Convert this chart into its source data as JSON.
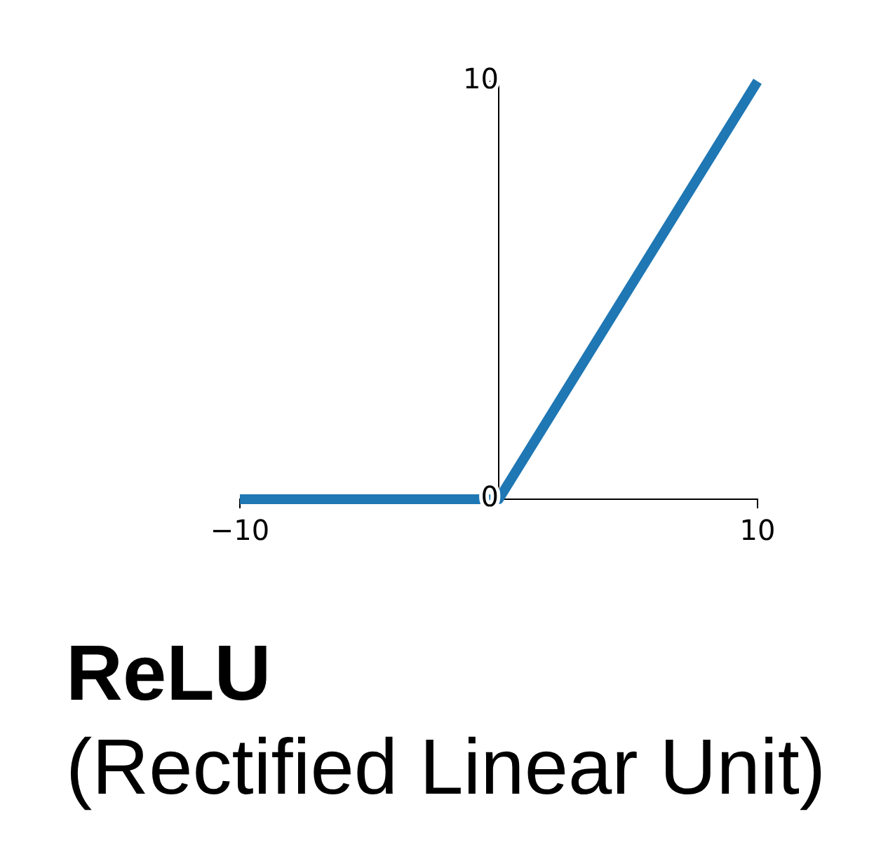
{
  "chart_data": {
    "type": "line",
    "title": "ReLU",
    "subtitle": "(Rectified Linear Unit)",
    "x": [
      -10,
      0,
      10
    ],
    "series": [
      {
        "color": "#1f77b4",
        "values": [
          0,
          0,
          10
        ]
      }
    ],
    "xlim": [
      -10,
      10
    ],
    "ylim": [
      0,
      10
    ],
    "xticks": [
      {
        "value": -10,
        "label": "−10"
      },
      10
    ],
    "yticks": [
      0,
      10
    ],
    "marker": "none",
    "line_style": "solid"
  }
}
